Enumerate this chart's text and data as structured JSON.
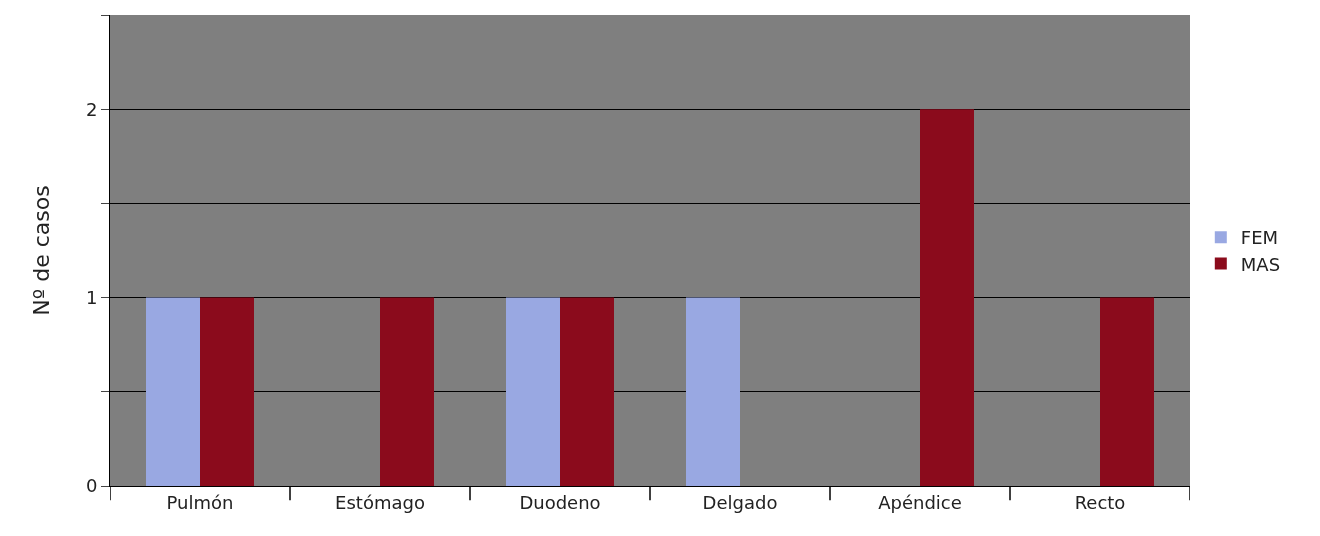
{
  "chart_data": {
    "type": "bar",
    "ylabel": "Nº de casos",
    "categories": [
      "Pulmón",
      "Estómago",
      "Duodeno",
      "Delgado",
      "Apéndice",
      "Recto"
    ],
    "series": [
      {
        "name": "FEM",
        "color": "#99a8e2",
        "values": [
          1,
          0,
          1,
          1,
          0,
          0
        ]
      },
      {
        "name": "MAS",
        "color": "#8b0b1c",
        "values": [
          1,
          1,
          1,
          0,
          2,
          1
        ]
      }
    ],
    "ylim": [
      0,
      2.5
    ],
    "yticks": [
      0,
      {
        "value": 0.5,
        "label": null
      },
      1,
      {
        "value": 1.5,
        "label": null
      },
      2,
      {
        "value": 2.5,
        "label": null
      }
    ],
    "grid": "y",
    "legend": "right"
  }
}
